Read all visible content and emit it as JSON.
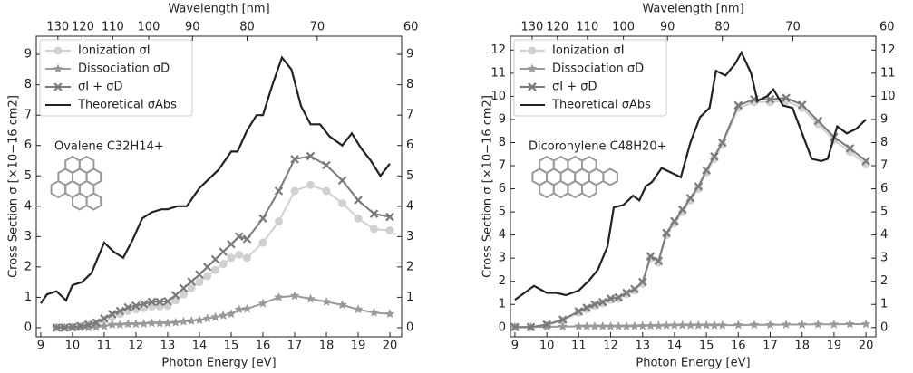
{
  "chart_data": [
    {
      "type": "line",
      "xlabel": "Photon Energy [eV]",
      "x2label": "Wavelength [nm]",
      "ylabel": "Cross Section σ [×10−16 cm2]",
      "annotation": "Ovalene C32H14+",
      "legend": "upper left",
      "xlim": [
        8.86,
        20.37
      ],
      "xticks": [
        9,
        10,
        11,
        12,
        13,
        14,
        15,
        16,
        17,
        18,
        19,
        20
      ],
      "x2ticks": [
        {
          "value": 9.54,
          "label": "130"
        },
        {
          "value": 10.33,
          "label": "120"
        },
        {
          "value": 11.27,
          "label": "110"
        },
        {
          "value": 12.4,
          "label": "100"
        },
        {
          "value": 13.78,
          "label": "90"
        },
        {
          "value": 15.5,
          "label": "80"
        },
        {
          "value": 17.71,
          "label": "70"
        },
        {
          "value": 20.66,
          "label": "60"
        }
      ],
      "ylim": [
        -0.3,
        9.6
      ],
      "yticks": [
        0,
        1,
        2,
        3,
        4,
        5,
        6,
        7,
        8,
        9
      ],
      "y2ticks": [
        0,
        1,
        2,
        3,
        4,
        5,
        6,
        7,
        8,
        9
      ],
      "series": [
        {
          "name": "Ionization σI",
          "color": "#d0d0d0",
          "marker": "circle",
          "x": [
            9.5,
            9.75,
            10,
            10.25,
            10.5,
            10.75,
            11,
            11.25,
            11.5,
            11.75,
            12,
            12.25,
            12.5,
            12.75,
            13,
            13.25,
            13.5,
            13.75,
            14,
            14.25,
            14.5,
            14.75,
            15,
            15.25,
            15.5,
            16,
            16.5,
            17,
            17.5,
            18,
            18.5,
            19,
            19.5,
            20
          ],
          "values": [
            0,
            0,
            0.02,
            0.05,
            0.1,
            0.15,
            0.25,
            0.35,
            0.45,
            0.55,
            0.6,
            0.65,
            0.7,
            0.7,
            0.72,
            0.9,
            1.1,
            1.3,
            1.5,
            1.7,
            1.9,
            2.1,
            2.3,
            2.4,
            2.3,
            2.8,
            3.5,
            4.5,
            4.7,
            4.5,
            4.1,
            3.6,
            3.25,
            3.2
          ]
        },
        {
          "name": "Dissociation σD",
          "color": "#9a9a9a",
          "marker": "star",
          "x": [
            9.5,
            9.75,
            10,
            10.25,
            10.5,
            10.75,
            11,
            11.25,
            11.5,
            11.75,
            12,
            12.25,
            12.5,
            12.75,
            13,
            13.25,
            13.5,
            13.75,
            14,
            14.25,
            14.5,
            14.75,
            15,
            15.25,
            15.5,
            16,
            16.5,
            17,
            17.5,
            18,
            18.5,
            19,
            19.5,
            20
          ],
          "values": [
            0,
            0,
            0,
            0,
            0,
            0.02,
            0.05,
            0.1,
            0.1,
            0.12,
            0.12,
            0.13,
            0.15,
            0.15,
            0.15,
            0.17,
            0.2,
            0.22,
            0.25,
            0.3,
            0.35,
            0.4,
            0.45,
            0.6,
            0.62,
            0.8,
            1.0,
            1.05,
            0.95,
            0.85,
            0.75,
            0.6,
            0.5,
            0.45
          ]
        },
        {
          "name": "σI + σD",
          "color": "#7a7a7a",
          "marker": "x",
          "x": [
            9.5,
            9.75,
            10,
            10.25,
            10.5,
            10.75,
            11,
            11.25,
            11.5,
            11.75,
            12,
            12.25,
            12.5,
            12.75,
            13,
            13.25,
            13.5,
            13.75,
            14,
            14.25,
            14.5,
            14.75,
            15,
            15.25,
            15.5,
            16,
            16.5,
            17,
            17.5,
            18,
            18.5,
            19,
            19.5,
            20
          ],
          "values": [
            0,
            0,
            0.02,
            0.05,
            0.1,
            0.17,
            0.3,
            0.45,
            0.55,
            0.67,
            0.72,
            0.78,
            0.85,
            0.85,
            0.87,
            1.07,
            1.3,
            1.52,
            1.75,
            2.0,
            2.25,
            2.5,
            2.75,
            3.0,
            2.92,
            3.6,
            4.5,
            5.55,
            5.65,
            5.35,
            4.85,
            4.2,
            3.75,
            3.65
          ]
        },
        {
          "name": "Theoretical σAbs",
          "color": "#222222",
          "marker": "none",
          "x": [
            9,
            9.2,
            9.5,
            9.8,
            10,
            10.3,
            10.6,
            11,
            11.3,
            11.6,
            11.9,
            12.2,
            12.5,
            12.8,
            13,
            13.3,
            13.6,
            14,
            14.3,
            14.6,
            15,
            15.2,
            15.5,
            15.8,
            16,
            16.3,
            16.6,
            16.9,
            17.2,
            17.5,
            17.8,
            18.1,
            18.5,
            18.8,
            19.1,
            19.4,
            19.7,
            20
          ],
          "values": [
            0.8,
            1.1,
            1.2,
            0.9,
            1.4,
            1.5,
            1.8,
            2.8,
            2.5,
            2.3,
            2.9,
            3.6,
            3.8,
            3.9,
            3.9,
            4.0,
            4.0,
            4.6,
            4.9,
            5.2,
            5.8,
            5.8,
            6.5,
            7.0,
            7.0,
            8.0,
            8.9,
            8.5,
            7.3,
            6.7,
            6.7,
            6.3,
            6.0,
            6.4,
            5.9,
            5.5,
            5.0,
            5.4
          ]
        }
      ]
    },
    {
      "type": "line",
      "xlabel": "Photon Energy [eV]",
      "x2label": "Wavelength [nm]",
      "ylabel": "Cross Section σ [×10−16 cm2]",
      "annotation": "Dicoronylene C48H20+",
      "legend": "upper left",
      "xlim": [
        8.86,
        20.31
      ],
      "xticks": [
        9,
        10,
        11,
        12,
        13,
        14,
        15,
        16,
        17,
        18,
        19,
        20
      ],
      "x2ticks": [
        {
          "value": 9.54,
          "label": "130"
        },
        {
          "value": 10.33,
          "label": "120"
        },
        {
          "value": 11.27,
          "label": "110"
        },
        {
          "value": 12.4,
          "label": "100"
        },
        {
          "value": 13.78,
          "label": "90"
        },
        {
          "value": 15.5,
          "label": "80"
        },
        {
          "value": 17.71,
          "label": "70"
        },
        {
          "value": 20.66,
          "label": "60"
        }
      ],
      "ylim": [
        -0.4,
        12.6
      ],
      "yticks": [
        0,
        1,
        2,
        3,
        4,
        5,
        6,
        7,
        8,
        9,
        10,
        11,
        12
      ],
      "y2ticks": [
        0,
        1,
        2,
        3,
        4,
        5,
        6,
        7,
        8,
        9,
        10,
        11,
        12
      ],
      "series": [
        {
          "name": "Ionization σI",
          "color": "#d0d0d0",
          "marker": "circle",
          "x": [
            9,
            9.5,
            10,
            10.5,
            11,
            11.25,
            11.5,
            11.75,
            12,
            12.25,
            12.5,
            12.75,
            13,
            13.25,
            13.5,
            13.75,
            14,
            14.25,
            14.5,
            14.75,
            15,
            15.25,
            15.5,
            16,
            16.5,
            17,
            17.5,
            18,
            18.5,
            19,
            19.5,
            20
          ],
          "values": [
            0,
            0,
            0.1,
            0.3,
            0.65,
            0.8,
            0.95,
            1.05,
            1.2,
            1.25,
            1.45,
            1.6,
            1.9,
            3.0,
            2.8,
            4.0,
            4.5,
            5.0,
            5.5,
            6.0,
            6.7,
            7.3,
            7.9,
            9.5,
            9.75,
            9.75,
            9.8,
            9.5,
            8.8,
            8.1,
            7.6,
            7.05
          ]
        },
        {
          "name": "Dissociation σD",
          "color": "#9a9a9a",
          "marker": "star",
          "x": [
            9,
            9.5,
            10,
            10.5,
            11,
            11.25,
            11.5,
            11.75,
            12,
            12.25,
            12.5,
            12.75,
            13,
            13.25,
            13.5,
            13.75,
            14,
            14.25,
            14.5,
            14.75,
            15,
            15.25,
            15.5,
            16,
            16.5,
            17,
            17.5,
            18,
            18.5,
            19,
            19.5,
            20
          ],
          "values": [
            0.02,
            0.02,
            0.03,
            0.04,
            0.05,
            0.05,
            0.05,
            0.05,
            0.05,
            0.05,
            0.05,
            0.06,
            0.07,
            0.08,
            0.08,
            0.09,
            0.1,
            0.1,
            0.1,
            0.1,
            0.1,
            0.1,
            0.1,
            0.11,
            0.12,
            0.12,
            0.13,
            0.13,
            0.14,
            0.14,
            0.15,
            0.15
          ]
        },
        {
          "name": "σI + σD",
          "color": "#7a7a7a",
          "marker": "x",
          "x": [
            9,
            9.5,
            10,
            10.5,
            11,
            11.25,
            11.5,
            11.75,
            12,
            12.25,
            12.5,
            12.75,
            13,
            13.25,
            13.5,
            13.75,
            14,
            14.25,
            14.5,
            14.75,
            15,
            15.25,
            15.5,
            16,
            16.5,
            17,
            17.5,
            18,
            18.5,
            19,
            19.5,
            20
          ],
          "values": [
            0.02,
            0.02,
            0.13,
            0.34,
            0.7,
            0.85,
            1.0,
            1.1,
            1.25,
            1.3,
            1.5,
            1.66,
            1.97,
            3.08,
            2.88,
            4.09,
            4.6,
            5.1,
            5.6,
            6.1,
            6.8,
            7.4,
            8.0,
            9.61,
            9.87,
            9.87,
            9.93,
            9.63,
            8.94,
            8.24,
            7.75,
            7.2
          ]
        },
        {
          "name": "Theoretical σAbs",
          "color": "#222222",
          "marker": "none",
          "x": [
            9,
            9.3,
            9.6,
            10,
            10.3,
            10.6,
            11,
            11.3,
            11.6,
            11.9,
            12.1,
            12.4,
            12.7,
            12.9,
            13.1,
            13.3,
            13.6,
            13.9,
            14.2,
            14.5,
            14.8,
            15.1,
            15.3,
            15.6,
            15.9,
            16.1,
            16.4,
            16.6,
            16.9,
            17.1,
            17.4,
            17.7,
            18,
            18.3,
            18.6,
            18.8,
            19.1,
            19.4,
            19.7,
            20
          ],
          "values": [
            1.2,
            1.5,
            1.8,
            1.5,
            1.5,
            1.4,
            1.6,
            2.0,
            2.5,
            3.5,
            5.2,
            5.3,
            5.7,
            5.5,
            6.1,
            6.3,
            6.9,
            6.7,
            6.5,
            8.0,
            9.1,
            9.5,
            11.1,
            10.9,
            11.4,
            11.9,
            11.0,
            9.8,
            10.0,
            10.3,
            9.6,
            9.5,
            8.4,
            7.3,
            7.2,
            7.3,
            8.7,
            8.4,
            8.6,
            9.0
          ]
        }
      ]
    }
  ]
}
